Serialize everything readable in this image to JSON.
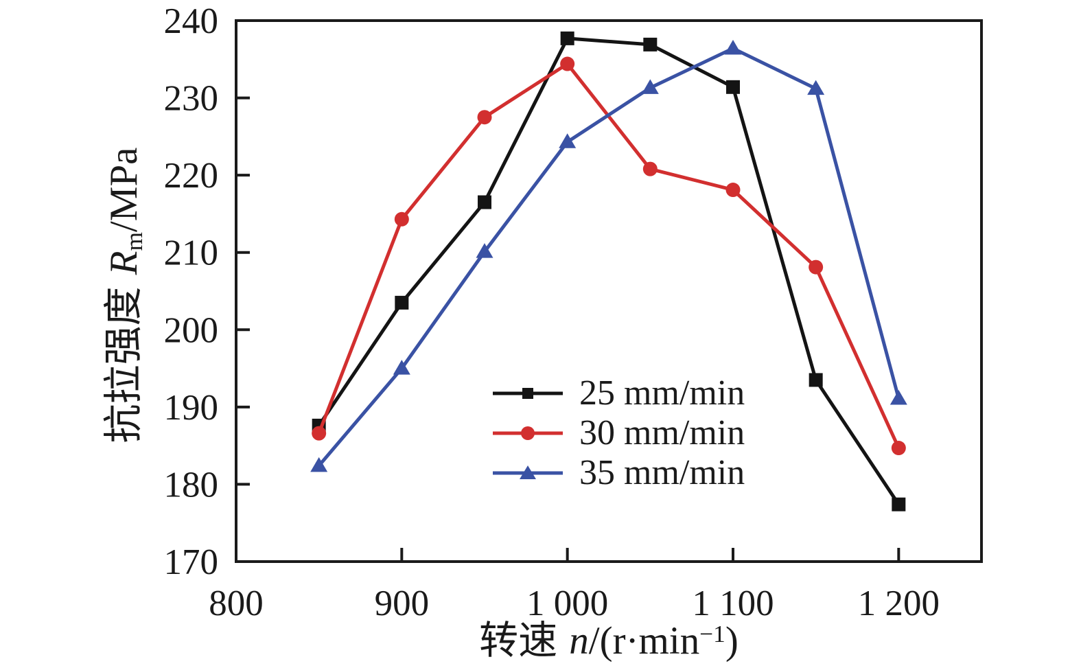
{
  "figure": {
    "background": "#ffffff",
    "frame_color": "#1a1a1a",
    "text_color": "#1a1a1a"
  },
  "axis_labels": {
    "y_prefix": "抗拉强度",
    "y_var": "R",
    "y_sub": "m",
    "y_suffix": "/MPa",
    "x_prefix": "转速",
    "x_var": "n",
    "x_mid": "/(r·min",
    "x_sup": "−1",
    "x_close": ")"
  },
  "chart_data": {
    "type": "line",
    "title": "",
    "xlabel": "转速 n/(r·min−1)",
    "ylabel": "抗拉强度 Rm/MPa",
    "x": [
      850,
      900,
      950,
      1000,
      1050,
      1100,
      1150,
      1200
    ],
    "series": [
      {
        "name": "25 mm/min",
        "color": "#141414",
        "marker": "square",
        "values": [
          187.6,
          203.5,
          216.5,
          237.7,
          236.9,
          231.4,
          193.5,
          177.4
        ]
      },
      {
        "name": "30 mm/min",
        "color": "#d22f2f",
        "marker": "circle",
        "values": [
          186.6,
          214.3,
          227.5,
          234.4,
          220.8,
          218.1,
          208.1,
          184.7
        ]
      },
      {
        "name": "35 mm/min",
        "color": "#3a52a4",
        "marker": "triangle",
        "values": [
          182.4,
          195.0,
          210.1,
          224.3,
          231.3,
          236.4,
          231.2,
          191.1
        ]
      }
    ],
    "xlim": [
      800,
      1250
    ],
    "ylim": [
      170,
      240
    ],
    "x_ticks": [
      {
        "v": 800,
        "label": "800"
      },
      {
        "v": 900,
        "label": "900"
      },
      {
        "v": 1000,
        "label": "1 000"
      },
      {
        "v": 1100,
        "label": "1 100"
      },
      {
        "v": 1200,
        "label": "1 200"
      }
    ],
    "y_ticks": [
      {
        "v": 170,
        "label": "170"
      },
      {
        "v": 180,
        "label": "180"
      },
      {
        "v": 190,
        "label": "190"
      },
      {
        "v": 200,
        "label": "200"
      },
      {
        "v": 210,
        "label": "210"
      },
      {
        "v": 220,
        "label": "220"
      },
      {
        "v": 230,
        "label": "230"
      },
      {
        "v": 240,
        "label": "240"
      }
    ],
    "grid": false,
    "legend_position": "inside-lower-center"
  }
}
